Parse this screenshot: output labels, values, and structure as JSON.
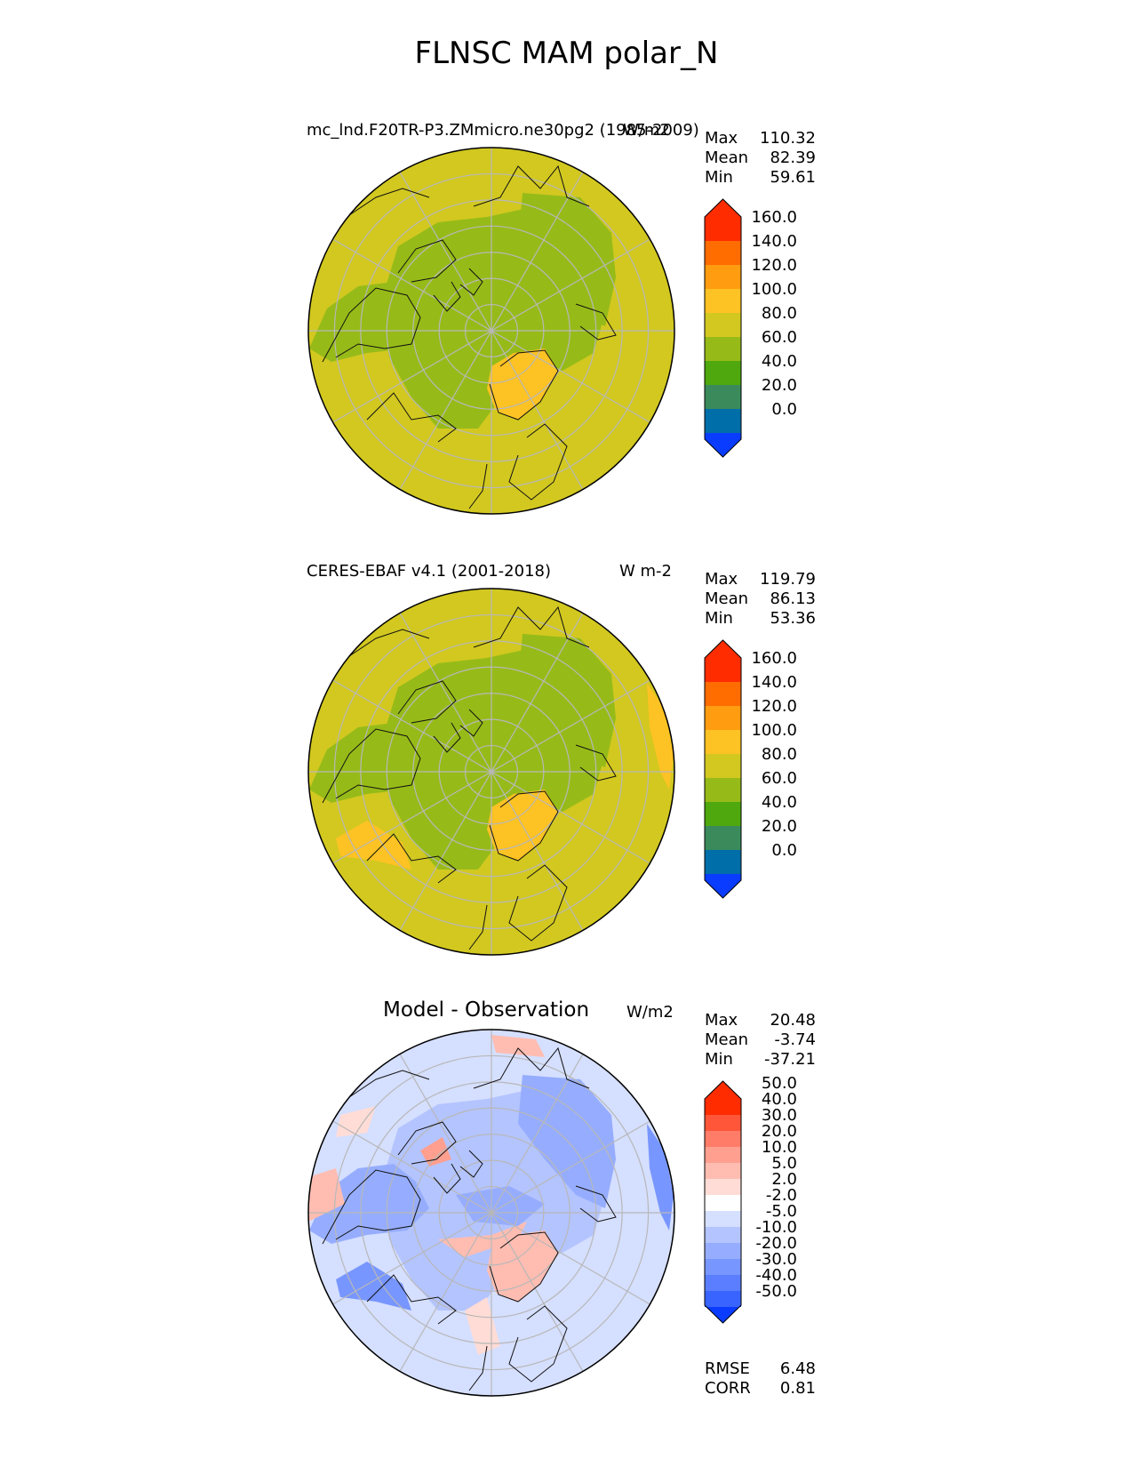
{
  "figure": {
    "title": "FLNSC MAM polar_N"
  },
  "colors": {
    "abs_levels": [
      "#0a3cff",
      "#006ea8",
      "#3a8a5c",
      "#4ea80e",
      "#96bb18",
      "#d2c820",
      "#fdc223",
      "#ff9c10",
      "#ff6c00",
      "#ff2c00"
    ],
    "diff_levels": [
      "#0a3cff",
      "#3a64ff",
      "#5a7eff",
      "#7896ff",
      "#96adff",
      "#b4c4ff",
      "#d5dfff",
      "#ffffff",
      "#ffdcd6",
      "#ffbdb2",
      "#ff9f8f",
      "#ff7d68",
      "#ff563a",
      "#ff2c00"
    ],
    "coastline": "#111111",
    "gridline": "#b8b8b8"
  },
  "chart_data": [
    {
      "type": "heatmap",
      "projection": "north polar stereographic",
      "title": "mc_lnd.F20TR-P3.ZMmicro.ne30pg2 (1985-2009)",
      "units": "W/m2",
      "stats": {
        "max_label": "Max",
        "max": "110.32",
        "mean_label": "Mean",
        "mean": "82.39",
        "min_label": "Min",
        "min": "59.61"
      },
      "colorbar": {
        "extend": "both",
        "ticks": [
          "0.0",
          "20.0",
          "40.0",
          "60.0",
          "80.0",
          "100.0",
          "120.0",
          "140.0",
          "160.0"
        ]
      },
      "field_summary": "mostly 80-100 W/m2 over mid latitudes; 60-80 W/m2 over the Arctic Ocean, Canada and Siberia; 100-120 W/m2 over Greenland"
    },
    {
      "type": "heatmap",
      "projection": "north polar stereographic",
      "title": "CERES-EBAF v4.1 (2001-2018)",
      "units": "W m-2",
      "stats": {
        "max_label": "Max",
        "max": "119.79",
        "mean_label": "Mean",
        "mean": "86.13",
        "min_label": "Min",
        "min": "53.36"
      },
      "colorbar": {
        "extend": "both",
        "ticks": [
          "0.0",
          "20.0",
          "40.0",
          "60.0",
          "80.0",
          "100.0",
          "120.0",
          "140.0",
          "160.0"
        ]
      },
      "field_summary": "mostly 80-100 W/m2; 60-80 W/m2 over central Arctic and Canada; 100-120 W/m2 over Greenland, Alaska and Pacific edges"
    },
    {
      "type": "heatmap",
      "projection": "north polar stereographic",
      "title": "Model - Observation",
      "units": "W/m2",
      "stats": {
        "max_label": "Max",
        "max": "20.48",
        "mean_label": "Mean",
        "mean": "-3.74",
        "min_label": "Min",
        "min": "-37.21"
      },
      "colorbar": {
        "extend": "both",
        "ticks": [
          "-50.0",
          "-40.0",
          "-30.0",
          "-20.0",
          "-10.0",
          "-5.0",
          "-2.0",
          "2.0",
          "5.0",
          "10.0",
          "20.0",
          "30.0",
          "40.0",
          "50.0"
        ]
      },
      "metrics": {
        "rmse_label": "RMSE",
        "rmse": "6.48",
        "corr_label": "CORR",
        "corr": "0.81"
      },
      "field_summary": "predominantly negative differences (-2 to -20 W/m2); positive patches over Greenland, the Canadian Archipelago and scattered ocean areas"
    }
  ]
}
